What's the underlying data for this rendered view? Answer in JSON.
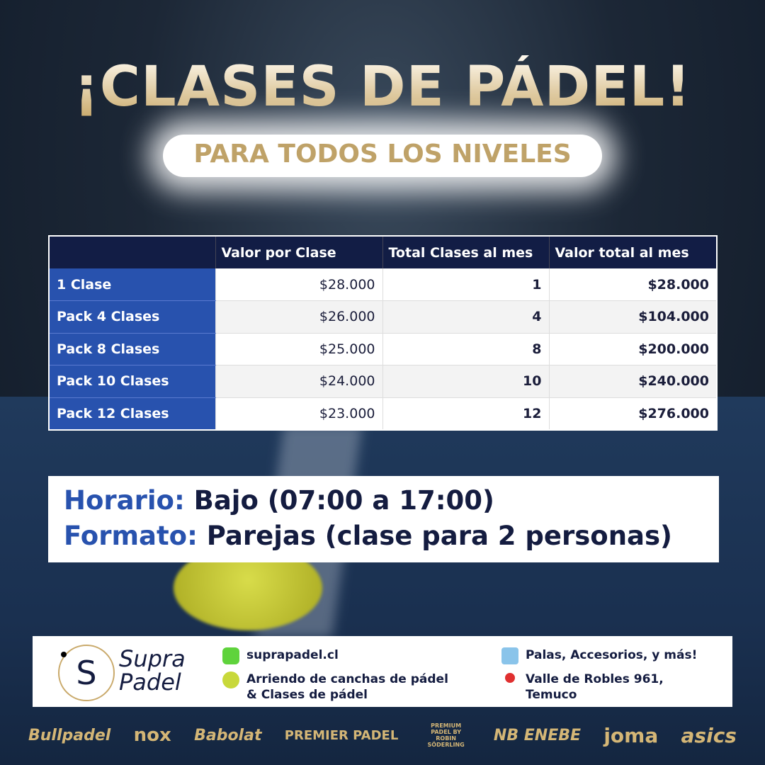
{
  "title": "¡CLASES DE PÁDEL!",
  "subtitle": "PARA TODOS LOS NIVELES",
  "table": {
    "headers": [
      "",
      "Valor por Clase",
      "Total Clases al mes",
      "Valor total al mes"
    ],
    "rows": [
      [
        "1 Clase",
        "$28.000",
        "1",
        "$28.000"
      ],
      [
        "Pack 4 Clases",
        "$26.000",
        "4",
        "$104.000"
      ],
      [
        "Pack 8 Clases",
        "$25.000",
        "8",
        "$200.000"
      ],
      [
        "Pack 10 Clases",
        "$24.000",
        "10",
        "$240.000"
      ],
      [
        "Pack 12 Clases",
        "$23.000",
        "12",
        "$276.000"
      ]
    ]
  },
  "info": {
    "horario_label": "Horario:",
    "horario": "Bajo (07:00 a 17:00)",
    "formato_label": "Formato:",
    "formato": "Parejas (clase para 2 personas)"
  },
  "footer": {
    "logo_letter": "S",
    "brand_line1": "Supra",
    "brand_line2": "Padel",
    "website": "suprapadel.cl",
    "service1": "Arriendo de canchas de pádel",
    "service2": "& Clases de pádel",
    "products": "Palas, Accesorios, y más!",
    "address1": "Valle de Robles 961,",
    "address2": "Temuco"
  },
  "brands": [
    "Bullpadel",
    "nox",
    "Babolat",
    "PREMIER PADEL",
    "PREMIUM PADEL BY ROBIN SÖDERLING",
    "NB ENEBE",
    "joma",
    "asics"
  ]
}
